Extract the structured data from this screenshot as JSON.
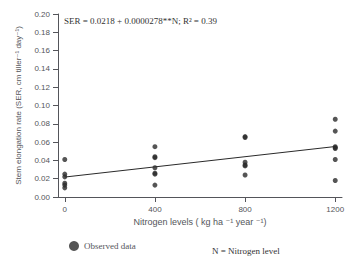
{
  "chart_data": {
    "type": "scatter",
    "xlabel": "Nitrogen levels ( kg ha ⁻¹ year ⁻¹)",
    "ylabel": "Stem elongation rate (SER, cm tiller⁻¹ day⁻¹)",
    "xlim": [
      -30,
      1230
    ],
    "ylim": [
      0.0,
      0.2
    ],
    "xticks": [
      0,
      400,
      800,
      1200
    ],
    "yticks": [
      {
        "value": 0.0,
        "label": "0.00"
      },
      0.02,
      0.04,
      0.06,
      0.08,
      {
        "value": 0.1,
        "label": "0.10"
      },
      0.12,
      0.14,
      0.16,
      0.18,
      {
        "value": 0.2,
        "label": "0.20"
      }
    ],
    "grid": false,
    "legend": "bottom",
    "series": [
      {
        "name": "Observed data",
        "type": "scatter",
        "marker": "circle",
        "color": "#2a2a2a",
        "x": [
          0,
          0,
          0,
          0,
          0,
          0,
          400,
          400,
          400,
          400,
          400,
          400,
          400,
          800,
          800,
          800,
          800,
          800,
          800,
          1200,
          1200,
          1200,
          1200,
          1200,
          1200,
          1200
        ],
        "values": [
          0.041,
          0.025,
          0.022,
          0.015,
          0.013,
          0.01,
          0.055,
          0.044,
          0.043,
          0.032,
          0.026,
          0.025,
          0.013,
          0.066,
          0.065,
          0.038,
          0.035,
          0.034,
          0.024,
          0.085,
          0.072,
          0.055,
          0.054,
          0.053,
          0.041,
          0.018
        ]
      },
      {
        "type": "line",
        "line_style": "solid",
        "color": "#2a2a2a",
        "x": [
          0,
          1200
        ],
        "values": [
          0.0218,
          0.05516
        ]
      }
    ],
    "annotations": [
      "SER = 0.0218 + 0.0000278**N; R² = 0.39",
      "N = Nitrogen level"
    ]
  }
}
